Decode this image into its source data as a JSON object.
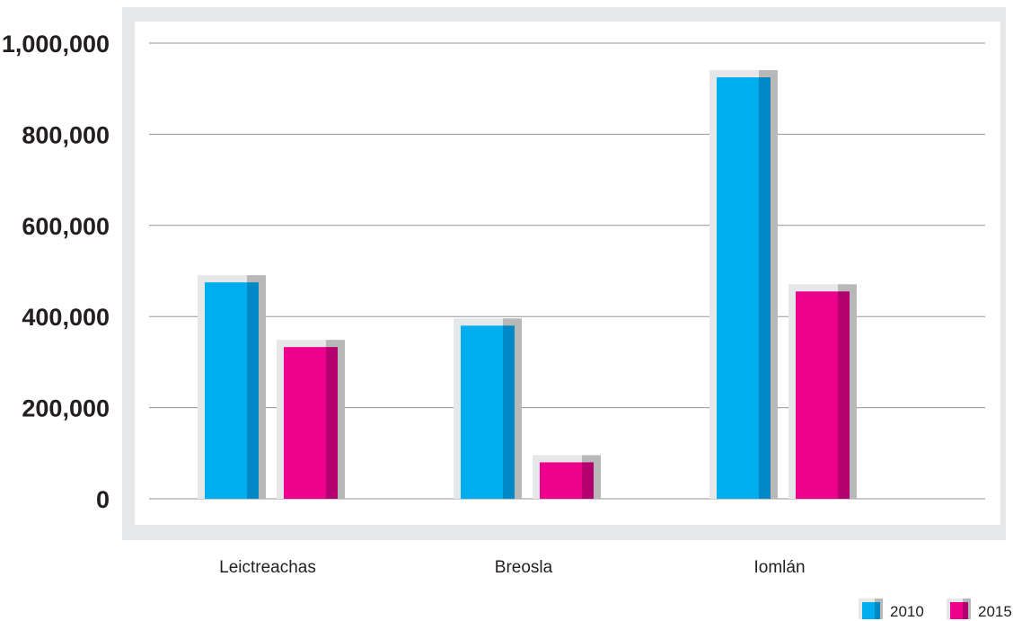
{
  "chart_data": {
    "type": "bar",
    "title": "",
    "xlabel": "",
    "ylabel": "",
    "categories": [
      "Leictreachas",
      "Breosla",
      "Iomlán"
    ],
    "series": [
      {
        "name": "2010",
        "values": [
          475000,
          380000,
          925000
        ],
        "color": "#00aeef",
        "shade": "#0089c4"
      },
      {
        "name": "2015",
        "values": [
          333000,
          80000,
          455000
        ],
        "color": "#ec008c",
        "shade": "#b3006e"
      }
    ],
    "ylim": [
      0,
      1000000
    ],
    "yticks": [
      0,
      200000,
      400000,
      600000,
      800000,
      1000000
    ],
    "ytick_labels": [
      "0",
      "200,000",
      "400,000",
      "600,000",
      "800,000",
      "1,000,000"
    ],
    "grid": true,
    "legend_position": "bottom-right",
    "plot_background": "#ffffff",
    "frame_color": "#e6e7e8",
    "gridline_color": "#939598"
  }
}
